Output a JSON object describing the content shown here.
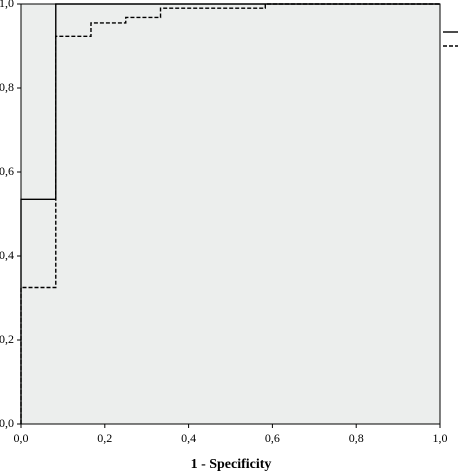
{
  "chart_data": {
    "type": "line",
    "xlabel": "1 - Specificity",
    "series": [
      {
        "color": "#000000",
        "dash": "none",
        "x": [
          0,
          0,
          0.083,
          0.083,
          1
        ],
        "values": [
          0,
          0.535,
          0.535,
          1,
          1
        ]
      },
      {
        "color": "#000000",
        "dash": "4 2",
        "x": [
          0,
          0,
          0.083,
          0.083,
          0.167,
          0.167,
          0.25,
          0.25,
          0.333,
          0.333,
          0.583,
          0.583,
          1
        ],
        "values": [
          0,
          0.325,
          0.325,
          0.923,
          0.923,
          0.955,
          0.955,
          0.968,
          0.968,
          0.99,
          0.99,
          1,
          1
        ]
      }
    ],
    "xlim": [
      0,
      1
    ],
    "ylim": [
      0,
      1
    ],
    "xticks": [
      {
        "value": 0,
        "label": "0,0"
      },
      {
        "value": 0.2,
        "label": "0,2"
      },
      {
        "value": 0.4,
        "label": "0,4"
      },
      {
        "value": 0.6,
        "label": "0,6"
      },
      {
        "value": 0.8,
        "label": "0,8"
      },
      {
        "value": 1,
        "label": "1,0"
      }
    ],
    "yticks": [
      {
        "value": 0,
        "label": "0,0"
      },
      {
        "value": 0.2,
        "label": "0,2"
      },
      {
        "value": 0.4,
        "label": "0,4"
      },
      {
        "value": 0.6,
        "label": "0,6"
      },
      {
        "value": 0.8,
        "label": "0,8"
      },
      {
        "value": 1,
        "label": "1,0"
      }
    ],
    "plot_background": "#eceeed"
  }
}
